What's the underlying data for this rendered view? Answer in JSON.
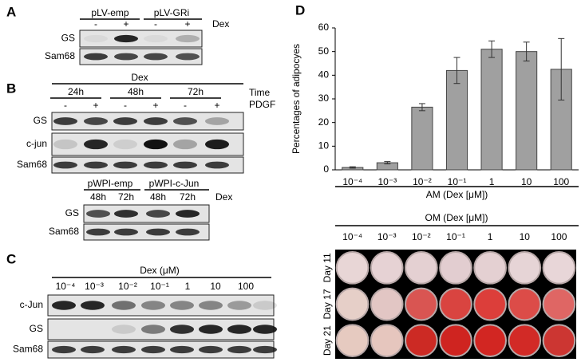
{
  "panel_a": {
    "label": "A",
    "groups": [
      "pLV-emp",
      "pLV-GRi"
    ],
    "treatment": "Dex",
    "signs": [
      "-",
      "+",
      "-",
      "+"
    ],
    "rows": [
      "GS",
      "Sam68"
    ]
  },
  "panel_b": {
    "label": "B",
    "treatment": "Dex",
    "times": [
      "24h",
      "48h",
      "72h"
    ],
    "time_label": "Time",
    "pdgf_label": "PDGF",
    "signs": [
      "-",
      "+",
      "-",
      "+",
      "-",
      "+"
    ],
    "rows": [
      "GS",
      "c-jun",
      "Sam68"
    ],
    "sub": {
      "groups": [
        "pWPI-emp",
        "pWPI-c-Jun"
      ],
      "times": [
        "48h",
        "72h",
        "48h",
        "72h"
      ],
      "treatment": "Dex",
      "rows": [
        "GS",
        "Sam68"
      ]
    }
  },
  "panel_c": {
    "label": "C",
    "title": "Dex (μM)",
    "concentrations": [
      "10⁻⁴",
      "10⁻³",
      "10⁻²",
      "10⁻¹",
      "1",
      "10",
      "100"
    ],
    "rows": [
      "c-Jun",
      "GS",
      "Sam68"
    ]
  },
  "panel_d": {
    "label": "D",
    "plate_title": "OM (Dex [μM])",
    "concentrations": [
      "10⁻⁴",
      "10⁻³",
      "10⁻²",
      "10⁻¹",
      "1",
      "10",
      "100"
    ],
    "days": [
      "Day 11",
      "Day 17",
      "Day 21"
    ]
  },
  "chart_data": {
    "type": "bar",
    "ylabel": "Percentages of adipocyes",
    "xlabel": "AM (Dex [μM])",
    "categories": [
      "10⁻⁴",
      "10⁻³",
      "10⁻²",
      "10⁻¹",
      "1",
      "10",
      "100"
    ],
    "values": [
      1,
      3,
      26.5,
      42,
      51,
      50,
      42.5
    ],
    "errors": [
      0.3,
      0.5,
      1.5,
      5.5,
      3.5,
      4,
      13
    ],
    "color": "#a0a0a0",
    "ylim": [
      0,
      60
    ],
    "yticks": [
      0,
      10,
      20,
      30,
      40,
      50,
      60
    ]
  }
}
